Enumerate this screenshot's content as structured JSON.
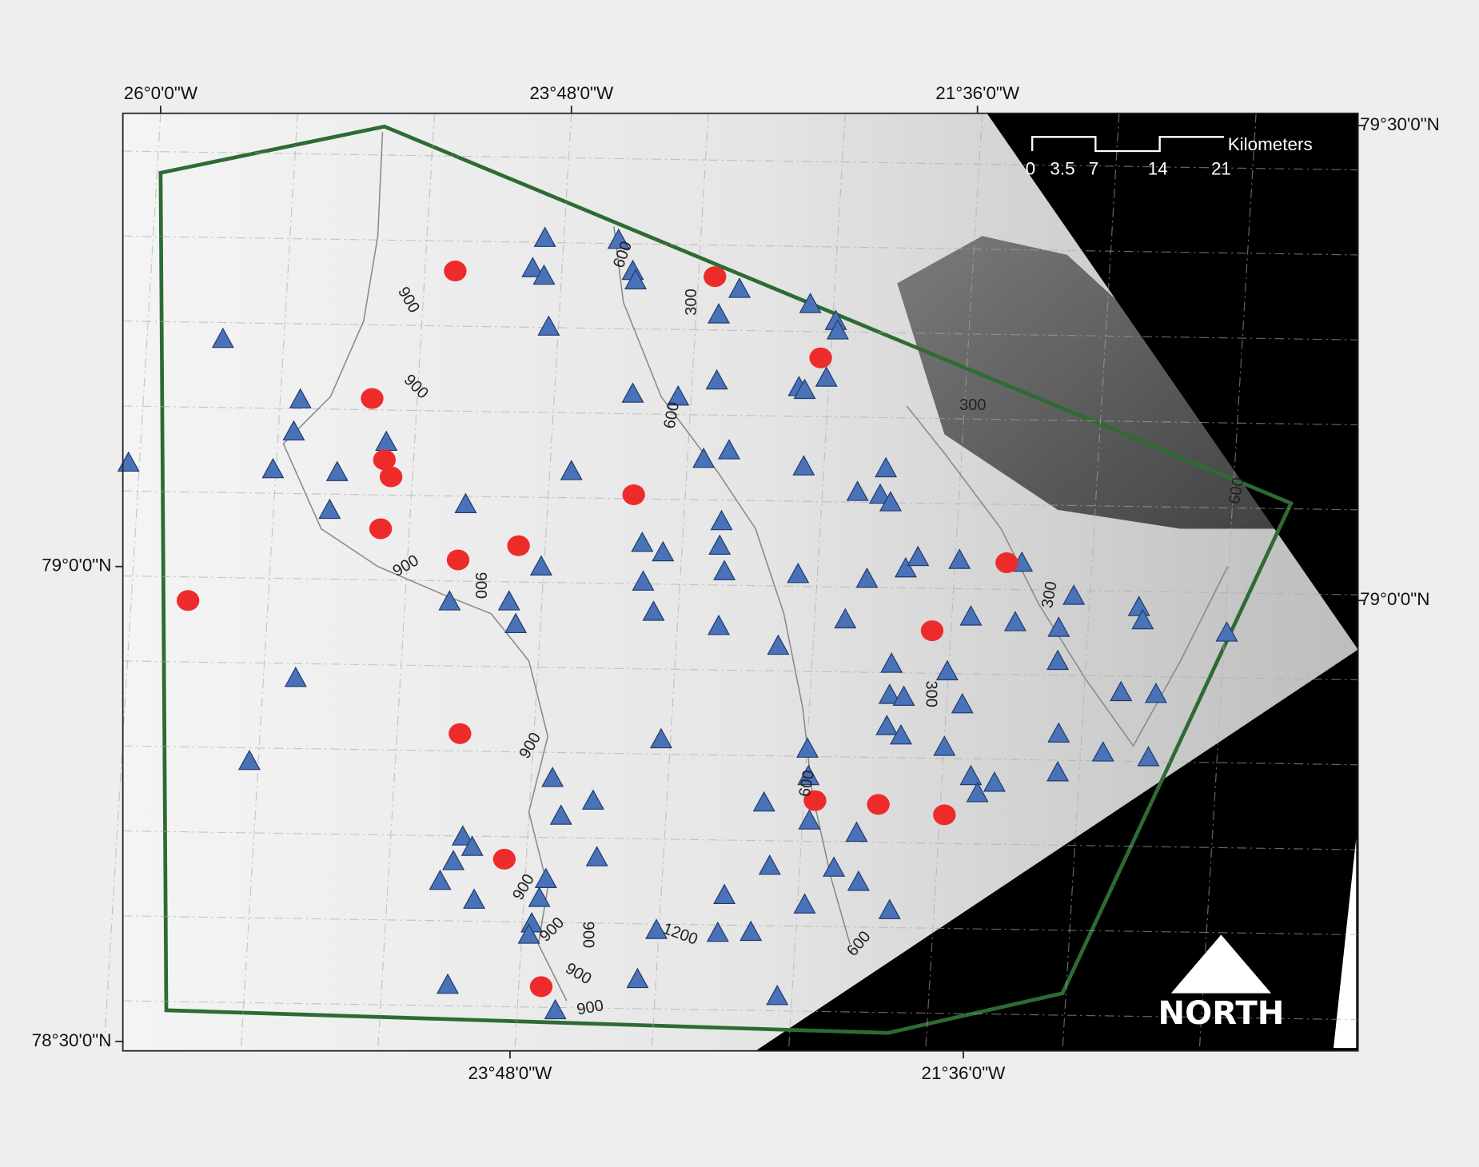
{
  "map": {
    "graticule_labels": {
      "top": [
        "26°0'0\"W",
        "23°48'0\"W",
        "21°36'0\"W"
      ],
      "bottom": [
        "23°48'0\"W",
        "21°36'0\"W"
      ],
      "left": [
        "79°0'0\"N",
        "78°30'0\"N"
      ],
      "right": [
        "79°30'0\"N",
        "79°0'0\"N"
      ]
    },
    "scale_bar": {
      "ticks": [
        0,
        3.5,
        7,
        14,
        21
      ],
      "unit": "Kilometers"
    },
    "contour_labels": [
      900,
      900,
      900,
      900,
      600,
      300,
      600,
      300,
      300,
      300,
      600,
      900,
      900,
      900,
      900,
      1200,
      900,
      900,
      600,
      600
    ],
    "north_arrow": "NORTH"
  }
}
